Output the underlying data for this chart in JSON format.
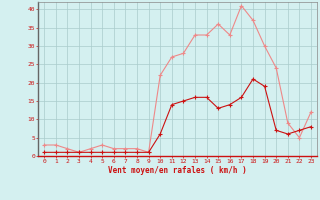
{
  "hours": [
    0,
    1,
    2,
    3,
    4,
    5,
    6,
    7,
    8,
    9,
    10,
    11,
    12,
    13,
    14,
    15,
    16,
    17,
    18,
    19,
    20,
    21,
    22,
    23
  ],
  "wind_avg": [
    1,
    1,
    1,
    1,
    1,
    1,
    1,
    1,
    1,
    1,
    6,
    14,
    15,
    16,
    16,
    13,
    14,
    16,
    21,
    19,
    7,
    6,
    7,
    8
  ],
  "wind_gust": [
    3,
    3,
    2,
    1,
    2,
    3,
    2,
    2,
    2,
    1,
    22,
    27,
    28,
    33,
    33,
    36,
    33,
    41,
    37,
    30,
    24,
    9,
    5,
    12
  ],
  "bg_color": "#d4f0f0",
  "grid_color": "#aacccc",
  "line_avg_color": "#cc1111",
  "line_gust_color": "#ee8888",
  "xlabel": "Vent moyen/en rafales ( km/h )",
  "ylim": [
    0,
    42
  ],
  "yticks": [
    0,
    5,
    10,
    15,
    20,
    25,
    30,
    35,
    40
  ],
  "xlabel_color": "#cc1111",
  "tick_color": "#cc1111",
  "axis_color": "#888888"
}
